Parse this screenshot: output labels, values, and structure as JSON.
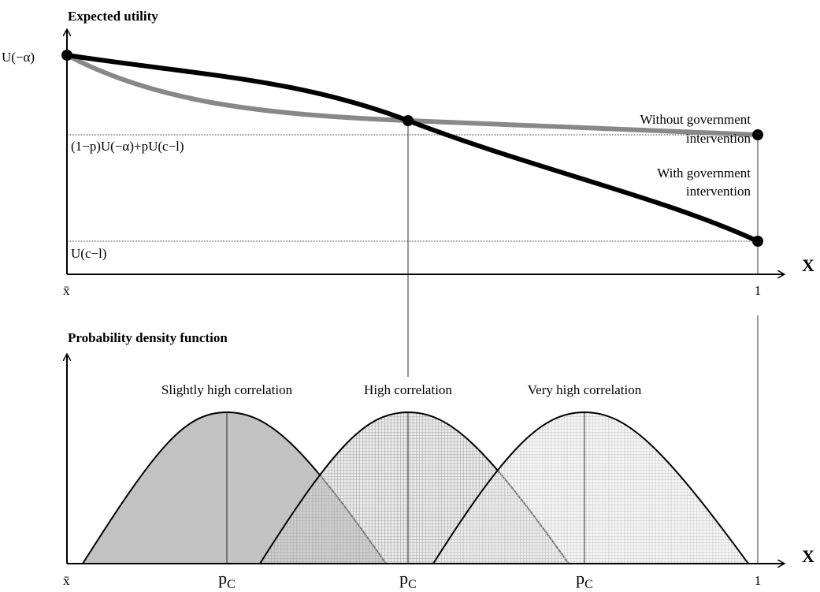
{
  "top": {
    "title": "Expected utility",
    "u_alpha": "U(−α)",
    "mid_level": "(1−p)U(−α)+pU(c−l)",
    "low_level": "U(c−l)",
    "x_min": "x̄",
    "x_max": "1",
    "x_axis": "X",
    "without_label": [
      "Without government",
      "intervention"
    ],
    "with_label": [
      "With government",
      "intervention"
    ]
  },
  "bottom": {
    "title": "Probability density function",
    "curves": [
      {
        "label": "Slightly high correlation",
        "mode": {
          "base": "p",
          "sub": "C"
        }
      },
      {
        "label": "High correlation",
        "mode": {
          "base": "p",
          "sub": "C"
        }
      },
      {
        "label": "Very high correlation",
        "mode": {
          "base": "p",
          "sub": "C"
        }
      }
    ],
    "x_min": "x̄",
    "x_max": "1",
    "x_axis": "X"
  }
}
